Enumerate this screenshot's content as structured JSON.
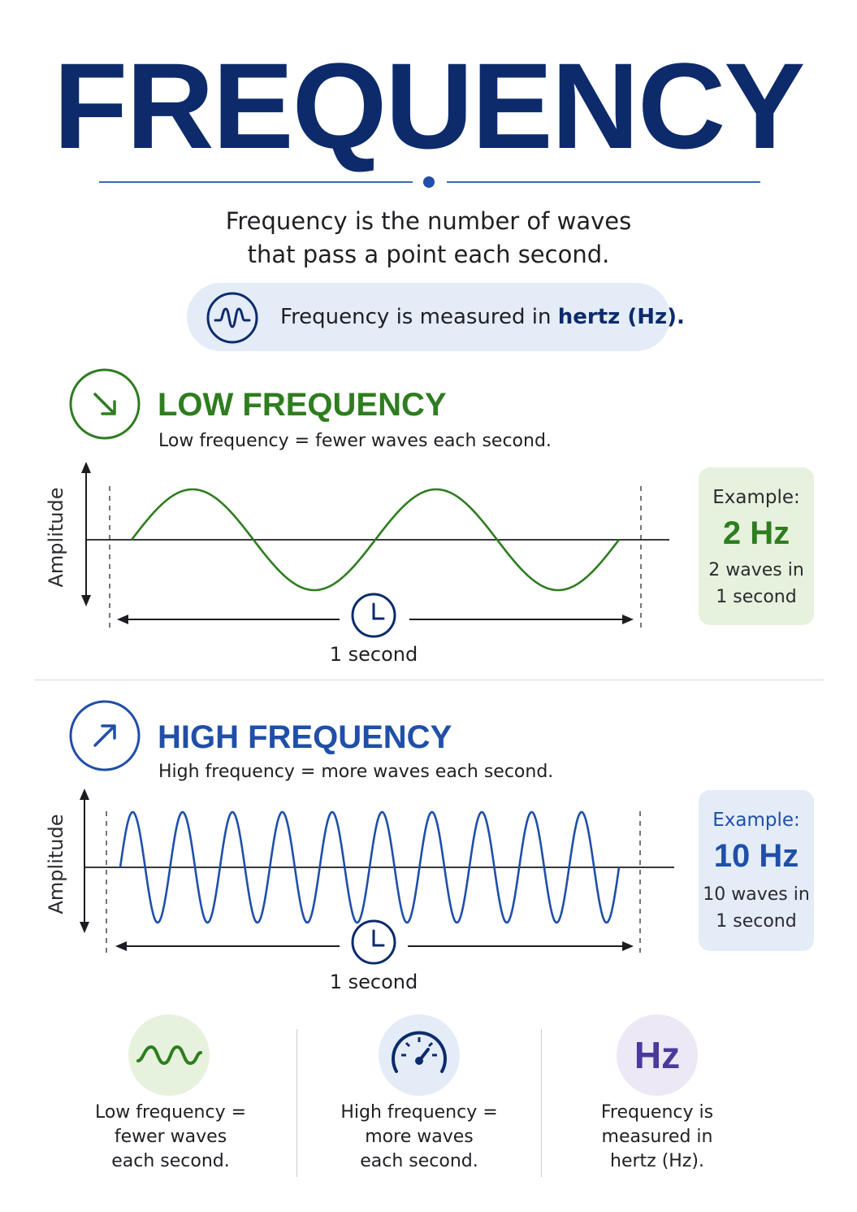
{
  "title": "FREQUENCY",
  "intro": {
    "line1": "Frequency is the number of waves",
    "line2": "that pass a point each second."
  },
  "unit_note": {
    "prefix": "Frequency is measured in ",
    "emphasis": "hertz (Hz).",
    "icon": "wave-icon"
  },
  "low": {
    "title": "LOW FREQUENCY",
    "subtitle": "Low frequency = fewer waves each second.",
    "icon": "arrow-down-right-icon",
    "amplitude_label": "Amplitude",
    "time_label": "1 second",
    "cycles": 2,
    "example_label": "Example:",
    "example_value": "2 Hz",
    "example_note_line1": "2 waves in",
    "example_note_line2": "1 second",
    "color": "#2e7d1f",
    "box_color": "#e6f2dd"
  },
  "high": {
    "title": "HIGH FREQUENCY",
    "subtitle": "High frequency = more waves each second.",
    "icon": "arrow-up-right-icon",
    "amplitude_label": "Amplitude",
    "time_label": "1 second",
    "cycles": 10,
    "example_label": "Example:",
    "example_value": "10 Hz",
    "example_note_line1": "10 waves in",
    "example_note_line2": "1 second",
    "color": "#1f4fa8",
    "box_color": "#e4ecf8"
  },
  "summary": [
    {
      "icon": "wave-icon",
      "line1": "Low frequency =",
      "line2": "fewer waves",
      "line3": "each second."
    },
    {
      "icon": "gauge-icon",
      "line1": "High frequency =",
      "line2": "more waves",
      "line3": "each second."
    },
    {
      "icon_text": "Hz",
      "line1": "Frequency is",
      "line2": "measured in",
      "line3": "hertz (Hz)."
    }
  ],
  "colors": {
    "navy": "#0d2b6b",
    "green": "#2e7d1f",
    "blue": "#1f4fa8",
    "purple": "#4a3a9c"
  }
}
